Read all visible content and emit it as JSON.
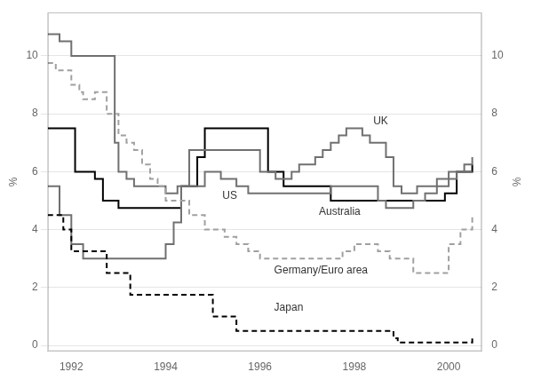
{
  "chart_data": {
    "type": "step",
    "ylabel": "%",
    "y2label": "%",
    "xlim": [
      1991.5,
      2000.7
    ],
    "ylim": [
      -0.2,
      11.5
    ],
    "xticks": [
      1992,
      1994,
      1996,
      1998,
      2000
    ],
    "yticks": [
      0,
      2,
      4,
      6,
      8,
      10
    ],
    "y2lim": [
      -0.2,
      11.5
    ],
    "y2ticks": [
      0,
      2,
      4,
      6,
      8,
      10
    ],
    "grid": "y",
    "series": [
      {
        "name": "Germany/Euro area",
        "color": "#a0a0a0",
        "line_style": "dashed",
        "x": [
          1991.5,
          1991.67,
          1991.83,
          1992.0,
          1992.17,
          1992.25,
          1992.5,
          1992.75,
          1993.0,
          1993.17,
          1993.33,
          1993.5,
          1993.67,
          1993.83,
          1994.0,
          1994.17,
          1994.33,
          1994.5,
          1994.67,
          1994.83,
          1995.0,
          1995.25,
          1995.5,
          1995.75,
          1996.0,
          1996.25,
          1996.5,
          1996.75,
          1997.0,
          1997.25,
          1997.5,
          1997.75,
          1998.0,
          1998.25,
          1998.5,
          1998.75,
          1999.0,
          1999.25,
          1999.5,
          1999.75,
          2000.0,
          2000.25,
          2000.5
        ],
        "values": [
          9.75,
          9.5,
          9.5,
          9.0,
          8.75,
          8.5,
          8.75,
          8.0,
          7.25,
          7.0,
          6.75,
          6.25,
          5.75,
          5.5,
          5.0,
          5.0,
          5.0,
          4.5,
          4.5,
          4.0,
          4.0,
          3.75,
          3.5,
          3.25,
          3.0,
          3.0,
          3.0,
          3.0,
          3.0,
          3.0,
          3.0,
          3.25,
          3.5,
          3.5,
          3.25,
          3.0,
          3.0,
          2.5,
          2.5,
          2.5,
          3.5,
          4.0,
          4.5
        ]
      },
      {
        "name": "Japan",
        "color": "#000000",
        "line_style": "dashed",
        "x": [
          1991.5,
          1991.67,
          1991.83,
          1992.0,
          1992.17,
          1992.5,
          1992.75,
          1993.0,
          1993.25,
          1993.5,
          1993.67,
          1993.83,
          1994.0,
          1994.5,
          1994.67,
          1994.83,
          1995.0,
          1995.25,
          1995.5,
          1995.75,
          1996.0,
          1996.25,
          1996.5,
          1996.75,
          1997.0,
          1997.25,
          1997.5,
          1997.75,
          1998.0,
          1998.25,
          1998.5,
          1998.75,
          1998.83,
          1998.92,
          1999.0,
          1999.25,
          1999.5,
          1999.75,
          2000.0,
          2000.25,
          2000.42,
          2000.5
        ],
        "values": [
          4.5,
          4.5,
          4.0,
          3.25,
          3.25,
          3.25,
          2.5,
          2.5,
          1.75,
          1.75,
          1.75,
          1.75,
          1.75,
          1.75,
          1.75,
          1.75,
          1.0,
          1.0,
          0.5,
          0.5,
          0.5,
          0.5,
          0.5,
          0.5,
          0.5,
          0.5,
          0.5,
          0.5,
          0.5,
          0.5,
          0.5,
          0.5,
          0.25,
          0.1,
          0.1,
          0.1,
          0.1,
          0.1,
          0.1,
          0.1,
          0.1,
          0.25
        ]
      },
      {
        "name": "UK",
        "color": "#707070",
        "line_style": "solid",
        "x": [
          1991.5,
          1991.75,
          1992.0,
          1992.25,
          1992.75,
          1992.92,
          1993.0,
          1993.17,
          1993.33,
          1993.5,
          1993.67,
          1993.83,
          1994.0,
          1994.25,
          1994.5,
          1994.67,
          1994.83,
          1995.0,
          1995.25,
          1995.5,
          1995.75,
          1996.0,
          1996.17,
          1996.33,
          1996.67,
          1996.83,
          1997.0,
          1997.17,
          1997.33,
          1997.5,
          1997.67,
          1997.83,
          1998.0,
          1998.17,
          1998.33,
          1998.5,
          1998.67,
          1998.83,
          1999.0,
          1999.17,
          1999.33,
          1999.5,
          1999.75,
          2000.0,
          2000.25,
          2000.5
        ],
        "values": [
          10.75,
          10.5,
          10.0,
          10.0,
          10.0,
          7.0,
          6.0,
          5.75,
          5.5,
          5.5,
          5.5,
          5.5,
          5.25,
          5.5,
          6.75,
          6.75,
          6.75,
          6.75,
          6.75,
          6.75,
          6.75,
          6.0,
          6.0,
          5.75,
          6.0,
          6.25,
          6.25,
          6.5,
          6.75,
          7.0,
          7.25,
          7.5,
          7.5,
          7.25,
          7.0,
          7.0,
          6.5,
          5.5,
          5.25,
          5.25,
          5.5,
          5.5,
          5.75,
          6.0,
          6.0,
          6.0
        ]
      },
      {
        "name": "US",
        "color": "#707070",
        "line_style": "solid",
        "x": [
          1991.5,
          1991.75,
          1992.0,
          1992.25,
          1992.5,
          1992.67,
          1992.83,
          1993.0,
          1993.5,
          1993.75,
          1994.0,
          1994.17,
          1994.33,
          1994.5,
          1994.67,
          1994.83,
          1995.0,
          1995.17,
          1995.5,
          1995.75,
          1996.0,
          1996.25,
          1996.5,
          1996.75,
          1997.0,
          1997.25,
          1997.5,
          1997.75,
          1998.0,
          1998.25,
          1998.5,
          1998.67,
          1998.83,
          1999.0,
          1999.25,
          1999.5,
          1999.75,
          2000.0,
          2000.17,
          2000.33,
          2000.5
        ],
        "values": [
          5.5,
          4.5,
          3.5,
          3.0,
          3.0,
          3.0,
          3.0,
          3.0,
          3.0,
          3.0,
          3.5,
          4.25,
          5.5,
          5.5,
          5.5,
          6.0,
          6.0,
          5.75,
          5.5,
          5.25,
          5.25,
          5.25,
          5.25,
          5.25,
          5.25,
          5.25,
          5.5,
          5.5,
          5.5,
          5.5,
          5.0,
          4.75,
          4.75,
          4.75,
          5.0,
          5.25,
          5.5,
          5.75,
          6.0,
          6.25,
          6.5
        ]
      },
      {
        "name": "Australia",
        "color": "#000000",
        "line_style": "solid",
        "x": [
          1991.5,
          1992.0,
          1992.08,
          1992.5,
          1992.67,
          1993.0,
          1993.25,
          1993.5,
          1993.75,
          1994.0,
          1994.33,
          1994.67,
          1994.83,
          1995.0,
          1995.25,
          1995.5,
          1995.75,
          1996.0,
          1996.17,
          1996.5,
          1996.67,
          1996.75,
          1997.0,
          1997.25,
          1997.5,
          1997.75,
          1998.0,
          1998.25,
          1998.5,
          1998.75,
          1999.0,
          1999.17,
          1999.5,
          1999.75,
          1999.92,
          2000.17,
          2000.5
        ],
        "values": [
          7.5,
          7.5,
          6.0,
          5.75,
          5.0,
          4.75,
          4.75,
          4.75,
          4.75,
          4.75,
          5.5,
          6.5,
          7.5,
          7.5,
          7.5,
          7.5,
          7.5,
          7.5,
          6.0,
          5.5,
          5.5,
          5.5,
          5.5,
          5.5,
          5.0,
          5.0,
          5.0,
          5.0,
          5.0,
          5.0,
          5.0,
          5.0,
          5.0,
          5.0,
          5.25,
          6.0,
          6.25
        ]
      }
    ],
    "annotations": [
      {
        "text": "UK",
        "x": 1998.4,
        "y": 7.75
      },
      {
        "text": "US",
        "x": 1995.2,
        "y": 5.15
      },
      {
        "text": "Australia",
        "x": 1997.25,
        "y": 4.6
      },
      {
        "text": "Germany/Euro area",
        "x": 1996.3,
        "y": 2.6
      },
      {
        "text": "Japan",
        "x": 1996.3,
        "y": 1.3
      }
    ]
  }
}
